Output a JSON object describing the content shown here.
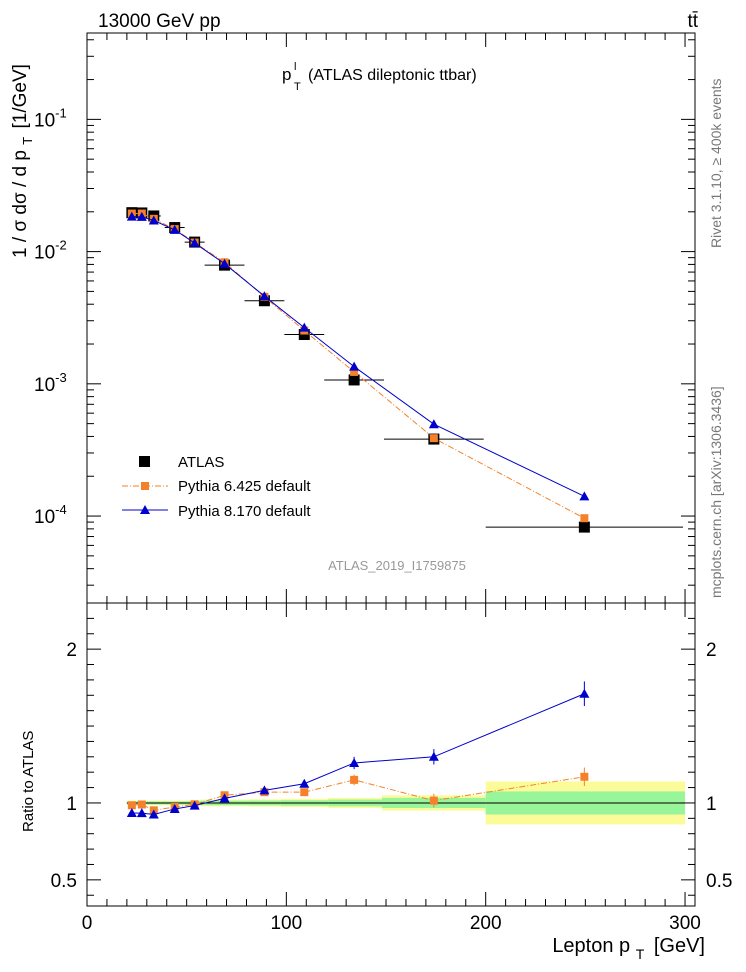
{
  "header": {
    "energy_label": "13000 GeV pp",
    "process_label": "tt̄"
  },
  "side_labels": {
    "rivet": "Rivet 3.1.10, ≥ 400k events",
    "source": "mcplots.cern.ch [arXiv:1306.3436]"
  },
  "colors": {
    "atlas": "#000000",
    "pythia6": "#f5812a",
    "pythia8": "#0000cc",
    "band_inner": "#99f599",
    "band_outer": "#fbfb9a"
  },
  "chart_data": [
    {
      "type": "scatter",
      "panel": "main",
      "title": "p_T^l (ATLAS dileptonic ttbar)",
      "title_main": "p",
      "title_sup": "l",
      "title_sub": "T",
      "title_rest": "(ATLAS dileptonic ttbar)",
      "analysis_id": "ATLAS_2019_I1759875",
      "ylabel": "1 / σ dσ / d p_T [1/GeV]",
      "ylabel_main": "1 / σ  dσ / d p",
      "ylabel_sub": "T",
      "ylabel_rest": "[1/GeV]",
      "yscale": "log",
      "xlim": [
        0,
        305
      ],
      "ylim": [
        2.2e-05,
        0.45
      ],
      "ytick_labels": [
        {
          "base": "10",
          "exp": "-4",
          "value": 0.0001
        },
        {
          "base": "10",
          "exp": "-3",
          "value": 0.001
        },
        {
          "base": "10",
          "exp": "-2",
          "value": 0.01
        },
        {
          "base": "10",
          "exp": "-1",
          "value": 0.1
        }
      ],
      "x": [
        22.5,
        27.5,
        33.5,
        44,
        54,
        69,
        89,
        109,
        134,
        174,
        249.5
      ],
      "xerr": [
        2.5,
        2.5,
        3.5,
        5,
        5,
        10,
        10,
        10,
        15,
        25,
        49.5
      ],
      "legend_position": "lower-left",
      "series": [
        {
          "name": "ATLAS",
          "marker": "square",
          "color": "#000000",
          "values": [
            0.0197,
            0.0196,
            0.0186,
            0.0152,
            0.0118,
            0.0079,
            0.00425,
            0.00236,
            0.00107,
            0.000382,
            8.25e-05
          ]
        },
        {
          "name": "Pythia 6.425 default",
          "marker": "square-small",
          "line": "dashdot",
          "color": "#f5812a",
          "values": [
            0.0194,
            0.0194,
            0.0177,
            0.0148,
            0.0117,
            0.0083,
            0.00455,
            0.00253,
            0.00123,
            0.000388,
            9.63e-05
          ]
        },
        {
          "name": "Pythia 8.170 default",
          "marker": "triangle",
          "line": "solid",
          "color": "#0000cc",
          "values": [
            0.0184,
            0.0183,
            0.0172,
            0.0146,
            0.0116,
            0.0081,
            0.0046,
            0.00266,
            0.00135,
            0.000495,
            0.000141
          ]
        }
      ]
    },
    {
      "type": "scatter",
      "panel": "ratio",
      "xlabel": "Lepton p_T [GeV]",
      "xlabel_main": "Lepton p",
      "xlabel_sub": "T",
      "xlabel_rest": "[GeV]",
      "ylabel": "Ratio to ATLAS",
      "xlim": [
        0,
        305
      ],
      "ylim": [
        0.33,
        2.3
      ],
      "x_ticks": [
        0,
        100,
        200,
        300
      ],
      "x_tick_labels": [
        "0",
        "100",
        "200",
        "300"
      ],
      "y_ticks": [
        0.5,
        1,
        2
      ],
      "y_tick_labels": [
        "0.5",
        "1",
        "2"
      ],
      "x": [
        22.5,
        27.5,
        33.5,
        44,
        54,
        69,
        89,
        109,
        134,
        174,
        249.5
      ],
      "band_edges": [
        20,
        25,
        30,
        37,
        51,
        57,
        81,
        97,
        121,
        148,
        200,
        300
      ],
      "band_inner": [
        0.01,
        0.01,
        0.01,
        0.01,
        0.012,
        0.015,
        0.016,
        0.018,
        0.022,
        0.033,
        0.075
      ],
      "band_outer": [
        0.015,
        0.015,
        0.015,
        0.015,
        0.018,
        0.022,
        0.024,
        0.027,
        0.033,
        0.05,
        0.14
      ],
      "series": [
        {
          "name": "Pythia 6.425 default",
          "color": "#f5812a",
          "values": [
            0.985,
            0.99,
            0.952,
            0.974,
            0.991,
            1.05,
            1.07,
            1.07,
            1.15,
            1.015,
            1.17
          ],
          "errors": [
            0.01,
            0.01,
            0.01,
            0.01,
            0.012,
            0.012,
            0.015,
            0.02,
            0.035,
            0.045,
            0.06
          ]
        },
        {
          "name": "Pythia 8.170 default",
          "color": "#0000cc",
          "values": [
            0.935,
            0.934,
            0.925,
            0.961,
            0.983,
            1.03,
            1.082,
            1.125,
            1.26,
            1.3,
            1.71
          ],
          "errors": [
            0.01,
            0.01,
            0.01,
            0.01,
            0.012,
            0.012,
            0.015,
            0.025,
            0.04,
            0.05,
            0.08
          ]
        }
      ]
    }
  ]
}
